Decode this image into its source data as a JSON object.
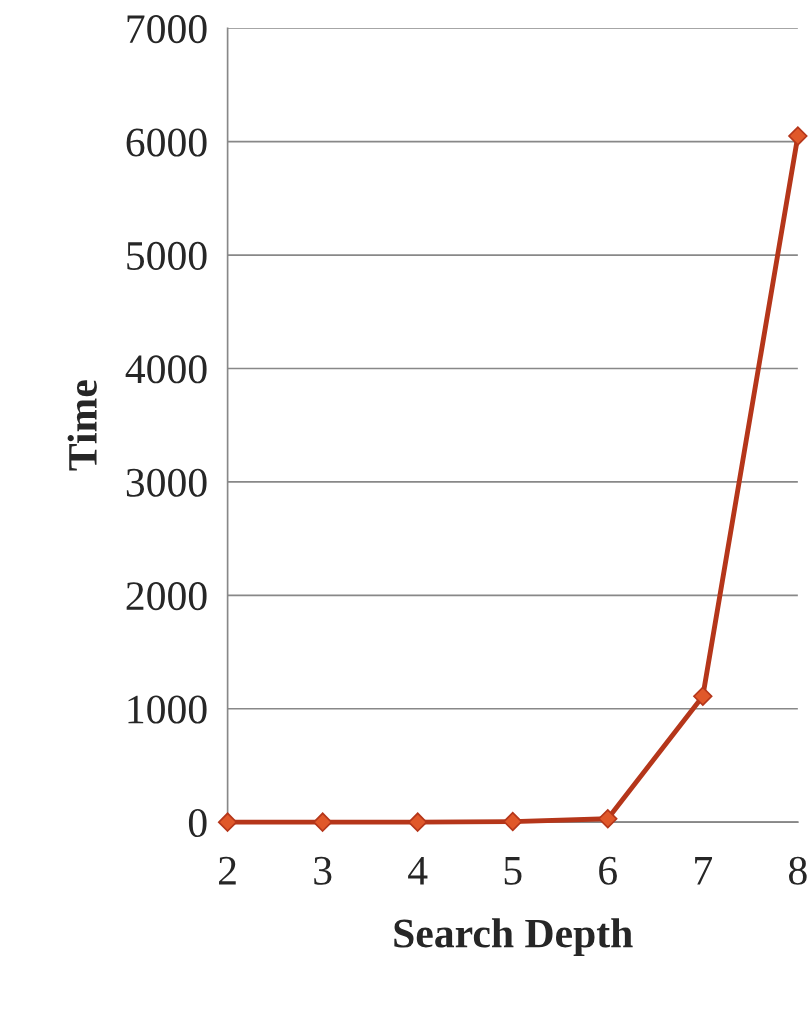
{
  "chart_data": {
    "type": "line",
    "xlabel": "Search Depth",
    "ylabel": "Time",
    "categories": [
      "2",
      "3",
      "4",
      "5",
      "6",
      "7",
      "8"
    ],
    "series": [
      {
        "color": "#b5361a",
        "values": [
          0,
          0,
          0,
          5,
          30,
          1110,
          6050
        ]
      }
    ],
    "ylim": [
      0,
      7000
    ],
    "yticks": [
      0,
      1000,
      2000,
      3000,
      4000,
      5000,
      6000,
      7000
    ],
    "grid": "y",
    "marker": "diamond",
    "line_style": "solid"
  }
}
